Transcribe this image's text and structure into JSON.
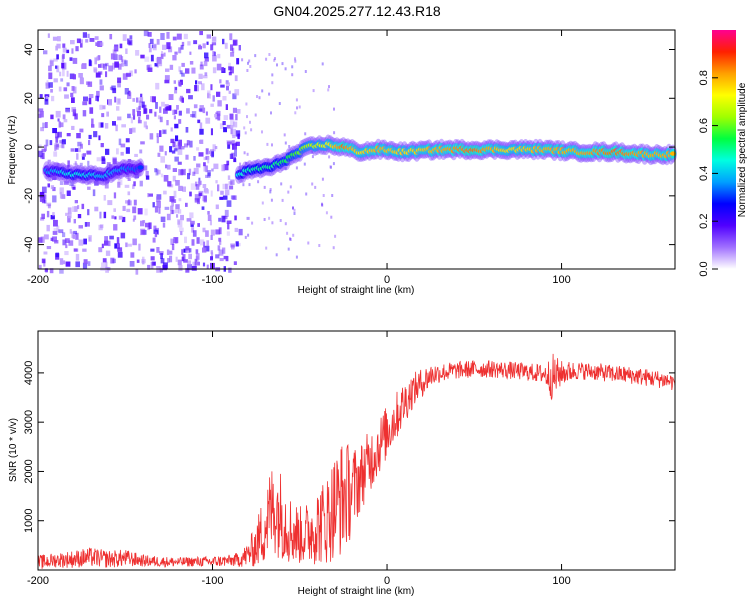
{
  "title": "GN04.2025.277.12.43.R18",
  "colorbar": {
    "label": "Normalized spectral amplitude",
    "range": [
      0,
      1
    ],
    "ticks": [
      {
        "value": 0.0,
        "label": "0.0"
      },
      {
        "value": 0.2,
        "label": "0.2"
      },
      {
        "value": 0.4,
        "label": "0.4"
      },
      {
        "value": 0.6,
        "label": "0.6"
      },
      {
        "value": 0.8,
        "label": "0.8"
      }
    ],
    "colors": [
      "#ffffff",
      "#a070ff",
      "#5000ff",
      "#0000ff",
      "#00a0ff",
      "#00ffe0",
      "#00ff40",
      "#a0ff00",
      "#ffff00",
      "#ffa000",
      "#ff2000",
      "#ff0090"
    ]
  },
  "chart_data": [
    {
      "type": "heatmap",
      "xlabel": "Height of straight line (km)",
      "ylabel": "Frequency (Hz)",
      "xlim": [
        -200,
        165
      ],
      "ylim": [
        -50,
        48
      ],
      "xticks": [
        {
          "value": -200,
          "label": "-200"
        },
        {
          "value": -100,
          "label": "-100"
        },
        {
          "value": 0,
          "label": "0"
        },
        {
          "value": 100,
          "label": "100"
        }
      ],
      "yticks": [
        {
          "value": -40,
          "label": "-40"
        },
        {
          "value": -20,
          "label": "-20"
        },
        {
          "value": 0,
          "label": "0"
        },
        {
          "value": 20,
          "label": "20"
        },
        {
          "value": 40,
          "label": "40"
        }
      ],
      "ridge": [
        {
          "x": -195,
          "y": -10,
          "amp": 0.35
        },
        {
          "x": -180,
          "y": -11,
          "amp": 0.45
        },
        {
          "x": -165,
          "y": -12,
          "amp": 0.4
        },
        {
          "x": -150,
          "y": -9,
          "amp": 0.35
        },
        {
          "x": -140,
          "y": -9,
          "amp": 0.3
        },
        {
          "x": -85,
          "y": -11,
          "amp": 0.45
        },
        {
          "x": -75,
          "y": -9,
          "amp": 0.5
        },
        {
          "x": -65,
          "y": -8,
          "amp": 0.5
        },
        {
          "x": -55,
          "y": -4,
          "amp": 0.55
        },
        {
          "x": -45,
          "y": 0,
          "amp": 0.65
        },
        {
          "x": -35,
          "y": 1,
          "amp": 0.7
        },
        {
          "x": -25,
          "y": 0,
          "amp": 0.85
        },
        {
          "x": -15,
          "y": -2,
          "amp": 0.75
        },
        {
          "x": -5,
          "y": -1,
          "amp": 0.8
        },
        {
          "x": 10,
          "y": -2,
          "amp": 0.75
        },
        {
          "x": 30,
          "y": -1,
          "amp": 0.8
        },
        {
          "x": 50,
          "y": -1,
          "amp": 0.85
        },
        {
          "x": 70,
          "y": -1,
          "amp": 0.75
        },
        {
          "x": 90,
          "y": -1,
          "amp": 0.8
        },
        {
          "x": 110,
          "y": -2,
          "amp": 0.8
        },
        {
          "x": 130,
          "y": -2,
          "amp": 0.85
        },
        {
          "x": 150,
          "y": -3,
          "amp": 0.8
        },
        {
          "x": 165,
          "y": -3,
          "amp": 0.8
        }
      ],
      "noise_region_x": [
        -200,
        -85
      ],
      "noise_region_amp": 0.2
    },
    {
      "type": "line",
      "xlabel": "Height of straight line (km)",
      "ylabel": "SNR (10 * v/v)",
      "xlim": [
        -200,
        165
      ],
      "ylim": [
        0,
        4850
      ],
      "xticks": [
        {
          "value": -200,
          "label": "-200"
        },
        {
          "value": -100,
          "label": "-100"
        },
        {
          "value": 0,
          "label": "0"
        },
        {
          "value": 100,
          "label": "100"
        }
      ],
      "yticks": [
        {
          "value": 1000,
          "label": "1000"
        },
        {
          "value": 2000,
          "label": "2000"
        },
        {
          "value": 3000,
          "label": "3000"
        },
        {
          "value": 4000,
          "label": "4000"
        }
      ],
      "series": [
        {
          "color": "#ee3030",
          "x": [
            -200,
            -190,
            -180,
            -170,
            -160,
            -150,
            -140,
            -130,
            -120,
            -110,
            -100,
            -90,
            -85,
            -80,
            -75,
            -70,
            -65,
            -60,
            -55,
            -50,
            -45,
            -40,
            -35,
            -30,
            -25,
            -20,
            -15,
            -10,
            -5,
            0,
            5,
            10,
            15,
            20,
            25,
            30,
            40,
            50,
            60,
            70,
            80,
            90,
            95,
            100,
            110,
            120,
            130,
            140,
            150,
            160,
            165
          ],
          "y": [
            150,
            200,
            220,
            260,
            220,
            240,
            190,
            170,
            160,
            170,
            170,
            190,
            210,
            300,
            500,
            900,
            1300,
            1100,
            800,
            700,
            750,
            900,
            1000,
            1300,
            1500,
            1600,
            1900,
            2200,
            2500,
            2800,
            3100,
            3400,
            3650,
            3800,
            3950,
            4000,
            4050,
            4080,
            4080,
            4050,
            4020,
            3980,
            3900,
            4000,
            4050,
            4020,
            3980,
            3950,
            3900,
            3850,
            3800
          ],
          "noise": [
            150,
            150,
            180,
            200,
            180,
            180,
            120,
            110,
            100,
            100,
            110,
            120,
            150,
            250,
            450,
            800,
            1000,
            900,
            700,
            600,
            650,
            800,
            900,
            1100,
            1200,
            900,
            700,
            650,
            600,
            550,
            500,
            450,
            350,
            300,
            250,
            200,
            180,
            180,
            180,
            180,
            180,
            200,
            500,
            250,
            180,
            180,
            180,
            180,
            180,
            180,
            180
          ]
        }
      ]
    }
  ]
}
